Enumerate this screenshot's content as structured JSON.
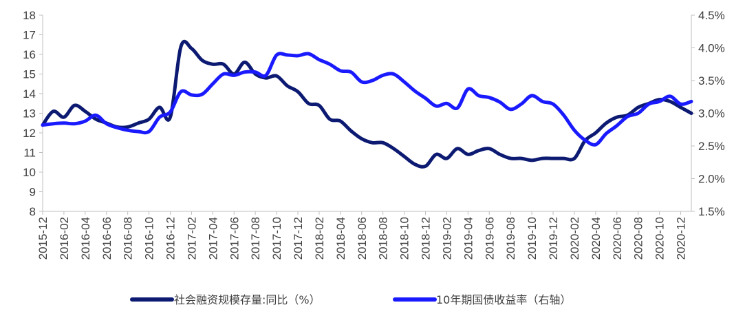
{
  "chart_data": {
    "type": "line",
    "title": "",
    "xlabel": "",
    "ylabel": "",
    "x_ticks": [
      "2015-12",
      "2016-02",
      "2016-04",
      "2016-06",
      "2016-08",
      "2016-10",
      "2016-12",
      "2017-02",
      "2017-04",
      "2017-06",
      "2017-08",
      "2017-10",
      "2017-12",
      "2018-02",
      "2018-04",
      "2018-06",
      "2018-08",
      "2018-10",
      "2018-12",
      "2019-02",
      "2019-04",
      "2019-06",
      "2019-08",
      "2019-10",
      "2019-12",
      "2020-02",
      "2020-04",
      "2020-06",
      "2020-08",
      "2020-10",
      "2020-12"
    ],
    "y_left": {
      "min": 8,
      "max": 18,
      "ticks": [
        "8",
        "9",
        "10",
        "11",
        "12",
        "13",
        "14",
        "15",
        "16",
        "17",
        "18"
      ]
    },
    "y_right": {
      "min": 1.5,
      "max": 4.5,
      "ticks": [
        "1.5%",
        "2.0%",
        "2.5%",
        "3.0%",
        "3.5%",
        "4.0%",
        "4.5%"
      ]
    },
    "grid": false,
    "legend_position": "bottom",
    "series": [
      {
        "name": "社会融资规模存量:同比（%）",
        "axis": "left",
        "color": "#0c1a72",
        "points": [
          [
            "2015-12",
            12.4
          ],
          [
            "2016-01",
            13.1
          ],
          [
            "2016-02",
            12.8
          ],
          [
            "2016-03",
            13.4
          ],
          [
            "2016-04",
            13.1
          ],
          [
            "2016-05",
            12.7
          ],
          [
            "2016-06",
            12.5
          ],
          [
            "2016-07",
            12.3
          ],
          [
            "2016-08",
            12.3
          ],
          [
            "2016-09",
            12.5
          ],
          [
            "2016-10",
            12.7
          ],
          [
            "2016-11",
            13.3
          ],
          [
            "2016-12",
            12.8
          ],
          [
            "2017-01",
            16.4
          ],
          [
            "2017-02",
            16.3
          ],
          [
            "2017-03",
            15.7
          ],
          [
            "2017-04",
            15.5
          ],
          [
            "2017-05",
            15.5
          ],
          [
            "2017-06",
            15.0
          ],
          [
            "2017-07",
            15.6
          ],
          [
            "2017-08",
            15.0
          ],
          [
            "2017-09",
            14.8
          ],
          [
            "2017-10",
            14.9
          ],
          [
            "2017-11",
            14.4
          ],
          [
            "2017-12",
            14.1
          ],
          [
            "2018-01",
            13.5
          ],
          [
            "2018-02",
            13.4
          ],
          [
            "2018-03",
            12.7
          ],
          [
            "2018-04",
            12.6
          ],
          [
            "2018-05",
            12.1
          ],
          [
            "2018-06",
            11.7
          ],
          [
            "2018-07",
            11.5
          ],
          [
            "2018-08",
            11.5
          ],
          [
            "2018-09",
            11.2
          ],
          [
            "2018-10",
            10.8
          ],
          [
            "2018-11",
            10.4
          ],
          [
            "2018-12",
            10.3
          ],
          [
            "2019-01",
            10.9
          ],
          [
            "2019-02",
            10.7
          ],
          [
            "2019-03",
            11.2
          ],
          [
            "2019-04",
            10.9
          ],
          [
            "2019-05",
            11.1
          ],
          [
            "2019-06",
            11.2
          ],
          [
            "2019-07",
            10.9
          ],
          [
            "2019-08",
            10.7
          ],
          [
            "2019-09",
            10.7
          ],
          [
            "2019-10",
            10.6
          ],
          [
            "2019-11",
            10.7
          ],
          [
            "2019-12",
            10.7
          ],
          [
            "2020-01",
            10.7
          ],
          [
            "2020-02",
            10.7
          ],
          [
            "2020-03",
            11.6
          ],
          [
            "2020-04",
            12.0
          ],
          [
            "2020-05",
            12.5
          ],
          [
            "2020-06",
            12.8
          ],
          [
            "2020-07",
            12.9
          ],
          [
            "2020-08",
            13.3
          ],
          [
            "2020-09",
            13.5
          ],
          [
            "2020-10",
            13.7
          ],
          [
            "2020-11",
            13.6
          ],
          [
            "2020-12",
            13.3
          ],
          [
            "2021-01",
            13.0
          ]
        ]
      },
      {
        "name": "10年期国债收益率（右轴）",
        "axis": "right",
        "color": "#1a1aff",
        "points": [
          [
            "2015-12",
            2.82
          ],
          [
            "2016-01",
            2.84
          ],
          [
            "2016-02",
            2.85
          ],
          [
            "2016-03",
            2.84
          ],
          [
            "2016-04",
            2.88
          ],
          [
            "2016-05",
            2.97
          ],
          [
            "2016-06",
            2.84
          ],
          [
            "2016-07",
            2.78
          ],
          [
            "2016-08",
            2.74
          ],
          [
            "2016-09",
            2.72
          ],
          [
            "2016-10",
            2.72
          ],
          [
            "2016-11",
            2.94
          ],
          [
            "2016-12",
            3.02
          ],
          [
            "2017-01",
            3.33
          ],
          [
            "2017-02",
            3.28
          ],
          [
            "2017-03",
            3.29
          ],
          [
            "2017-04",
            3.45
          ],
          [
            "2017-05",
            3.6
          ],
          [
            "2017-06",
            3.58
          ],
          [
            "2017-07",
            3.63
          ],
          [
            "2017-08",
            3.63
          ],
          [
            "2017-09",
            3.58
          ],
          [
            "2017-10",
            3.89
          ],
          [
            "2017-11",
            3.89
          ],
          [
            "2017-12",
            3.88
          ],
          [
            "2018-01",
            3.91
          ],
          [
            "2018-02",
            3.82
          ],
          [
            "2018-03",
            3.75
          ],
          [
            "2018-04",
            3.65
          ],
          [
            "2018-05",
            3.63
          ],
          [
            "2018-06",
            3.48
          ],
          [
            "2018-07",
            3.5
          ],
          [
            "2018-08",
            3.58
          ],
          [
            "2018-09",
            3.6
          ],
          [
            "2018-10",
            3.48
          ],
          [
            "2018-11",
            3.34
          ],
          [
            "2018-12",
            3.23
          ],
          [
            "2019-01",
            3.11
          ],
          [
            "2019-02",
            3.15
          ],
          [
            "2019-03",
            3.08
          ],
          [
            "2019-04",
            3.37
          ],
          [
            "2019-05",
            3.27
          ],
          [
            "2019-06",
            3.24
          ],
          [
            "2019-07",
            3.17
          ],
          [
            "2019-08",
            3.06
          ],
          [
            "2019-09",
            3.14
          ],
          [
            "2019-10",
            3.27
          ],
          [
            "2019-11",
            3.18
          ],
          [
            "2019-12",
            3.14
          ],
          [
            "2020-01",
            2.97
          ],
          [
            "2020-02",
            2.74
          ],
          [
            "2020-03",
            2.59
          ],
          [
            "2020-04",
            2.52
          ],
          [
            "2020-05",
            2.69
          ],
          [
            "2020-06",
            2.81
          ],
          [
            "2020-07",
            2.95
          ],
          [
            "2020-08",
            3.0
          ],
          [
            "2020-09",
            3.14
          ],
          [
            "2020-10",
            3.18
          ],
          [
            "2020-11",
            3.26
          ],
          [
            "2020-12",
            3.14
          ],
          [
            "2021-01",
            3.18
          ]
        ]
      }
    ]
  }
}
